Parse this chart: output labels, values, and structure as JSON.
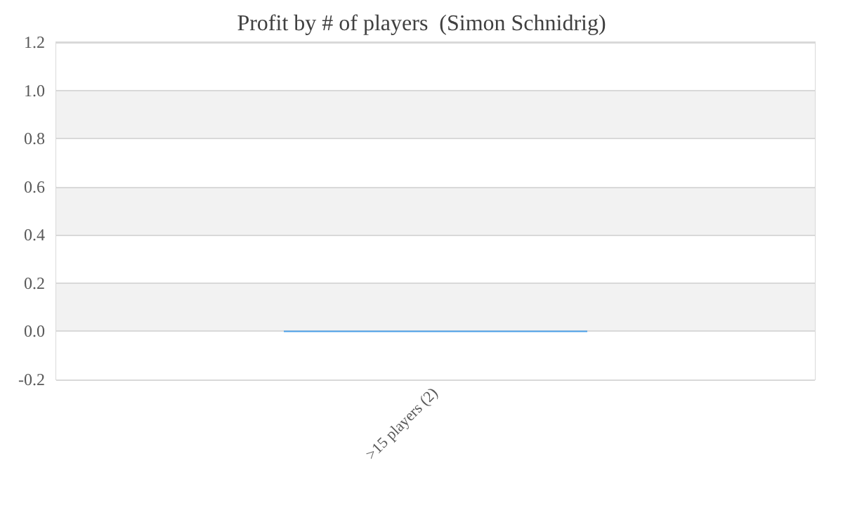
{
  "chart_data": {
    "type": "bar",
    "title": "Profit by # of players  (Simon Schnidrig)",
    "categories": [
      ">15 players (2)"
    ],
    "values": [
      0
    ],
    "color": "#4a9fe8",
    "ylim": [
      -0.2,
      1.2
    ],
    "yticks": [
      {
        "value": -0.2,
        "label": "-0.2"
      },
      {
        "value": 0,
        "label": "0.0"
      },
      {
        "value": 0.2,
        "label": "0.2"
      },
      {
        "value": 0.4,
        "label": "0.4"
      },
      {
        "value": 0.6,
        "label": "0.6"
      },
      {
        "value": 0.8,
        "label": "0.8"
      },
      {
        "value": 1,
        "label": "1.0"
      },
      {
        "value": 1.2,
        "label": "1.2"
      }
    ],
    "grid": "y"
  }
}
